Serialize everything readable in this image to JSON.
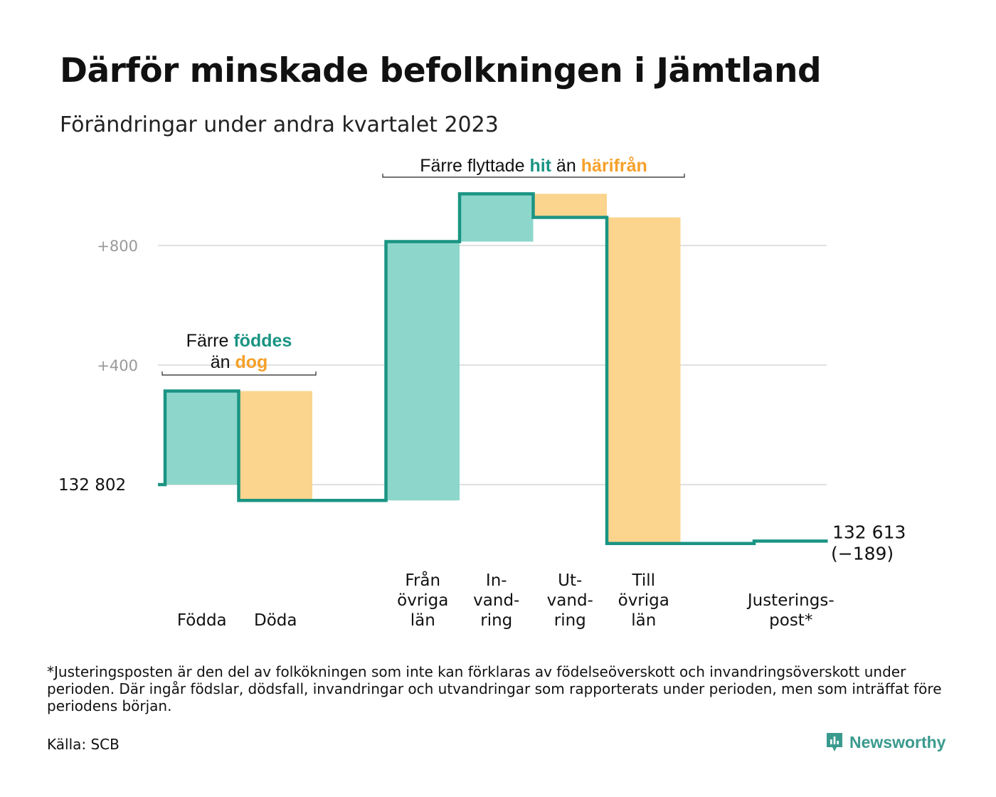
{
  "title": "Därför minskade befolkningen i Jämtland",
  "subtitle": "Förändringar under andra kvartalet 2023",
  "chart_data": {
    "type": "waterfall",
    "start_value": 132802,
    "start_label": "132   802",
    "end_value": 132613,
    "end_label": "132 613",
    "change_label": "(−189)",
    "y_ticks": [
      {
        "value": 800,
        "label": "+800"
      },
      {
        "value": 400,
        "label": "+400"
      }
    ],
    "ylim": [
      -230,
      1000
    ],
    "grid": true,
    "colors": {
      "positive": "#8dd6cc",
      "negative": "#fbd48d",
      "line": "#1a9483",
      "grid": "#e0e0e0",
      "accent_teal": "#1a9483",
      "accent_orange": "#f6a02a"
    },
    "steps": [
      {
        "name": "Födda",
        "label_lines": [
          "Födda"
        ],
        "value": 313,
        "kind": "positive"
      },
      {
        "name": "Döda",
        "label_lines": [
          "Döda"
        ],
        "value": -366,
        "kind": "negative"
      },
      {
        "name": "gap",
        "label_lines": [],
        "value": 0,
        "kind": "gap"
      },
      {
        "name": "Från övriga län",
        "label_lines": [
          "Från",
          "övriga",
          "län"
        ],
        "value": 866,
        "kind": "positive"
      },
      {
        "name": "Invandring",
        "label_lines": [
          "In-",
          "vand-",
          "ring"
        ],
        "value": 160,
        "kind": "positive"
      },
      {
        "name": "Utvandring",
        "label_lines": [
          "Ut-",
          "vand-",
          "ring"
        ],
        "value": -79,
        "kind": "negative"
      },
      {
        "name": "Till övriga län",
        "label_lines": [
          "Till",
          "övriga",
          "län"
        ],
        "value": -1091,
        "kind": "negative"
      },
      {
        "name": "gap2",
        "label_lines": [],
        "value": 0,
        "kind": "gap"
      },
      {
        "name": "Justeringspost",
        "label_lines": [
          "Justerings-",
          "post*"
        ],
        "value": 8,
        "kind": "line"
      }
    ],
    "annotations": [
      {
        "name": "births-deaths-annotation",
        "span_steps": [
          0,
          1
        ],
        "lines": [
          [
            {
              "text": "Färre ",
              "style": "plain"
            },
            {
              "text": "föddes",
              "style": "teal"
            }
          ],
          [
            {
              "text": "än ",
              "style": "plain"
            },
            {
              "text": "dog",
              "style": "orange"
            }
          ]
        ]
      },
      {
        "name": "migration-annotation",
        "span_steps": [
          3,
          6
        ],
        "lines": [
          [
            {
              "text": "Färre flyttade ",
              "style": "plain"
            },
            {
              "text": "hit",
              "style": "teal"
            },
            {
              "text": " än ",
              "style": "plain"
            },
            {
              "text": "härifrån",
              "style": "orange"
            }
          ]
        ]
      }
    ]
  },
  "footnote": "*Justeringsposten är den del av folkökningen som inte kan förklaras av födelseöverskott och invandringsöverskott under perioden. Där ingår födslar, dödsfall, invandringar och utvandringar som rapporterats under perioden, men som inträffat före periodens början.",
  "source": "Källa: SCB",
  "brand": {
    "name": "Newsworthy",
    "icon": "newsworthy-logo-icon",
    "color": "#3a9a8e"
  }
}
